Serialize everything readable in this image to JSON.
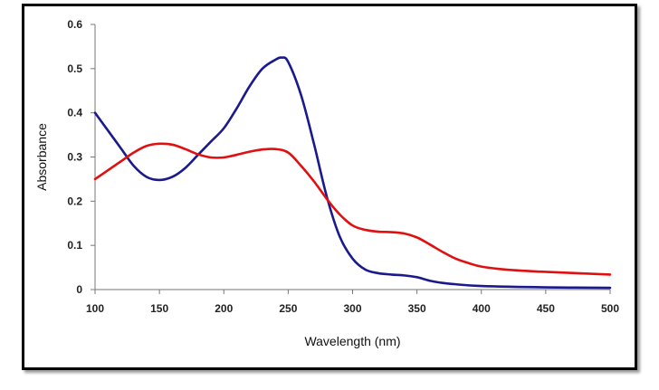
{
  "chart_data": {
    "type": "line",
    "title": "",
    "xlabel": "Wavelength (nm)",
    "ylabel": "Absorbance",
    "xlim": [
      100,
      500
    ],
    "ylim": [
      0,
      0.6
    ],
    "x_ticks": [
      100,
      150,
      200,
      250,
      300,
      350,
      400,
      450,
      500
    ],
    "y_ticks": [
      0,
      0.1,
      0.2,
      0.3,
      0.4,
      0.5,
      0.6
    ],
    "x_tick_labels": [
      "100",
      "150",
      "200",
      "250",
      "300",
      "350",
      "400",
      "450",
      "500"
    ],
    "y_tick_labels": [
      "0",
      "0.1",
      "0.2",
      "0.3",
      "0.4",
      "0.5",
      "0.6"
    ],
    "grid": false,
    "legend": "none",
    "series": [
      {
        "color": "#1a1a8c",
        "x": [
          100,
          110,
          120,
          130,
          140,
          150,
          160,
          170,
          180,
          190,
          200,
          210,
          220,
          230,
          240,
          245,
          250,
          260,
          270,
          280,
          290,
          300,
          310,
          320,
          330,
          340,
          350,
          360,
          370,
          380,
          400,
          450,
          500
        ],
        "y": [
          0.4,
          0.36,
          0.32,
          0.28,
          0.255,
          0.248,
          0.255,
          0.275,
          0.305,
          0.335,
          0.365,
          0.41,
          0.46,
          0.5,
          0.52,
          0.525,
          0.515,
          0.44,
          0.33,
          0.21,
          0.12,
          0.07,
          0.045,
          0.037,
          0.034,
          0.032,
          0.028,
          0.02,
          0.015,
          0.012,
          0.008,
          0.005,
          0.004
        ]
      },
      {
        "color": "#e01010",
        "x": [
          100,
          110,
          120,
          130,
          140,
          150,
          160,
          170,
          180,
          190,
          200,
          210,
          220,
          230,
          240,
          250,
          260,
          270,
          280,
          290,
          300,
          310,
          320,
          330,
          340,
          350,
          360,
          370,
          380,
          390,
          400,
          420,
          450,
          500
        ],
        "y": [
          0.25,
          0.27,
          0.29,
          0.31,
          0.325,
          0.33,
          0.328,
          0.318,
          0.306,
          0.299,
          0.299,
          0.305,
          0.312,
          0.317,
          0.318,
          0.31,
          0.28,
          0.245,
          0.205,
          0.17,
          0.145,
          0.135,
          0.131,
          0.13,
          0.127,
          0.118,
          0.102,
          0.085,
          0.07,
          0.06,
          0.052,
          0.045,
          0.04,
          0.034
        ]
      }
    ]
  }
}
